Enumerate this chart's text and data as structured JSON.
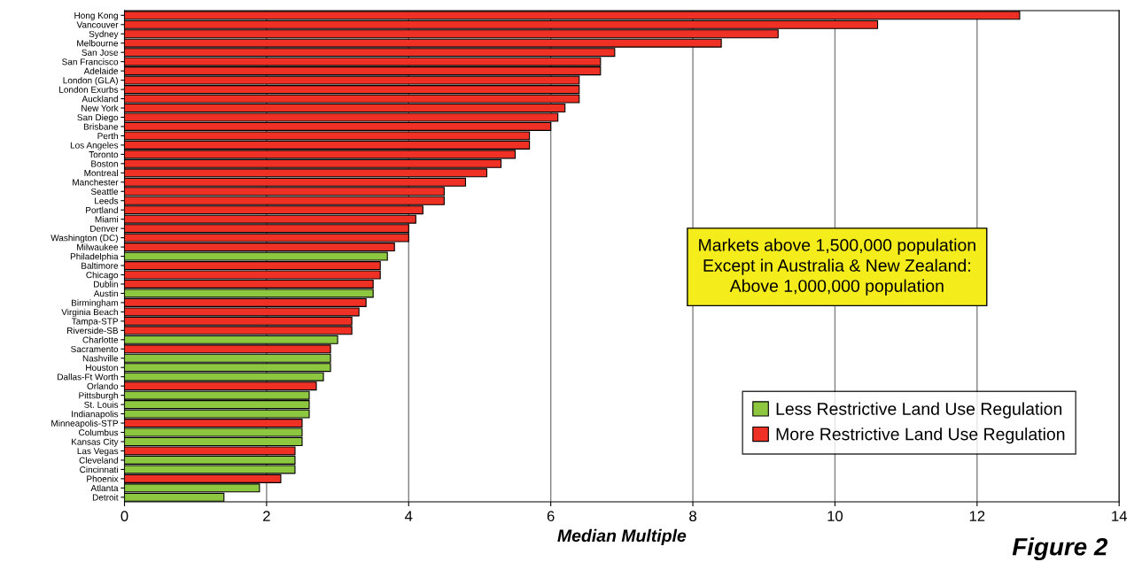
{
  "chart_data": {
    "type": "bar",
    "orientation": "horizontal",
    "xlabel": "Median Multiple",
    "categories": [
      "Hong Kong",
      "Vancouver",
      "Sydney",
      "Melbourne",
      "San Jose",
      "San Francisco",
      "Adelaide",
      "London (GLA)",
      "London Exurbs",
      "Auckland",
      "New York",
      "San Diego",
      "Brisbane",
      "Perth",
      "Los Angeles",
      "Toronto",
      "Boston",
      "Montreal",
      "Manchester",
      "Seattle",
      "Leeds",
      "Portland",
      "Miami",
      "Denver",
      "Washington (DC)",
      "Milwaukee",
      "Philadelphia",
      "Baltimore",
      "Chicago",
      "Dublin",
      "Austin",
      "Birmingham",
      "Virginia Beach",
      "Tampa-STP",
      "Riverside-SB",
      "Charlotte",
      "Sacramento",
      "Nashville",
      "Houston",
      "Dallas-Ft Worth",
      "Orlando",
      "Pittsburgh",
      "St. Louis",
      "Indianapolis",
      "Minneapolis-STP",
      "Columbus",
      "Kansas City",
      "Las Vegas",
      "Cleveland",
      "Cincinnati",
      "Phoenix",
      "Atlanta",
      "Detroit"
    ],
    "series": [
      {
        "name": "Less Restrictive Land Use Regulation",
        "color": "#8dc63f",
        "values": [
          null,
          null,
          null,
          null,
          null,
          null,
          null,
          null,
          null,
          null,
          null,
          null,
          null,
          null,
          null,
          null,
          null,
          null,
          null,
          null,
          null,
          null,
          null,
          null,
          null,
          null,
          3.7,
          null,
          null,
          null,
          3.5,
          null,
          null,
          null,
          null,
          3.0,
          null,
          2.9,
          2.9,
          2.8,
          null,
          2.6,
          2.6,
          2.6,
          null,
          2.5,
          2.5,
          null,
          2.4,
          2.4,
          null,
          1.9,
          1.4
        ]
      },
      {
        "name": "More Restrictive Land Use Regulation",
        "color": "#ee3124",
        "values": [
          12.6,
          10.6,
          9.2,
          8.4,
          6.9,
          6.7,
          6.7,
          6.4,
          6.4,
          6.4,
          6.2,
          6.1,
          6.0,
          5.7,
          5.7,
          5.5,
          5.3,
          5.1,
          4.8,
          4.5,
          4.5,
          4.2,
          4.1,
          4.0,
          4.0,
          3.8,
          null,
          3.6,
          3.6,
          3.5,
          null,
          3.4,
          3.3,
          3.2,
          3.2,
          null,
          2.9,
          null,
          null,
          null,
          2.7,
          null,
          null,
          null,
          2.5,
          null,
          null,
          2.4,
          null,
          null,
          2.2,
          null,
          null
        ]
      }
    ],
    "xlim": [
      0,
      14
    ],
    "xticks": [
      0,
      2,
      4,
      6,
      8,
      10,
      12,
      14
    ],
    "grid": "x",
    "legend": "bottom right",
    "annotations": [
      "Markets above 1,500,000 population\nExcept in Australia & New Zealand:\nAbove 1,000,000 population",
      "Figure 2"
    ]
  }
}
